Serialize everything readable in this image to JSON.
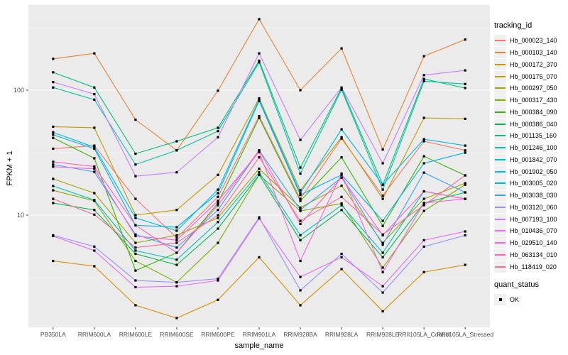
{
  "axes": {
    "y_title": "FPKM + 1",
    "x_title": "sample_name",
    "y_tick_labels": [
      "100",
      "10"
    ]
  },
  "legend": {
    "tracking_title": "tracking_id",
    "quant_title": "quant_status",
    "quant_value": "OK"
  },
  "chart_data": {
    "type": "line",
    "title": "",
    "xlabel": "sample_name",
    "ylabel": "FPKM + 1",
    "y_scale": "log10",
    "ylim": [
      1.26,
      481
    ],
    "y_tick_values": [
      100,
      10
    ],
    "grid": true,
    "panel_bg": "#EBEBEB",
    "grid_color": "#FFFFFF",
    "point_color": "#000000",
    "point_shape": "square",
    "legend_position": "right",
    "x_categories": [
      "PB350LA",
      "RRIM600LA",
      "RRIM600LE",
      "RRIM600SE",
      "RRIM600PE",
      "RRIM901LA",
      "RRIM928BA",
      "RRIM928LA",
      "RRIM928LE",
      "RRII105LA_Control",
      "RRII105LA_Stressed"
    ],
    "series": [
      {
        "name": "Hb_000023_140",
        "color": "#F8766D",
        "values": [
          34,
          36,
          13.5,
          6.6,
          14,
          62,
          13.5,
          41,
          14.3,
          39,
          33
        ]
      },
      {
        "name": "Hb_000103_140",
        "color": "#EA8331",
        "values": [
          178,
          197,
          58,
          33,
          99,
          370,
          100,
          216,
          33.5,
          187,
          254
        ]
      },
      {
        "name": "Hb_000172_370",
        "color": "#D89000",
        "values": [
          4.3,
          3.9,
          1.9,
          1.5,
          2.1,
          4.6,
          1.9,
          3.7,
          1.7,
          3.5,
          4.0
        ]
      },
      {
        "name": "Hb_000175_070",
        "color": "#C09B00",
        "values": [
          51,
          50,
          10,
          11,
          21,
          86,
          15.8,
          42,
          13.5,
          60,
          59
        ]
      },
      {
        "name": "Hb_000297_050",
        "color": "#A3A500",
        "values": [
          19.5,
          15,
          6.0,
          6.9,
          9.5,
          23.5,
          11.5,
          17.2,
          6.0,
          13.5,
          18
        ]
      },
      {
        "name": "Hb_000317_430",
        "color": "#7CAE00",
        "values": [
          15.8,
          13,
          4.3,
          2.9,
          6.0,
          21,
          10.8,
          12.4,
          3.8,
          10.8,
          17.5
        ]
      },
      {
        "name": "Hb_000384_090",
        "color": "#39B600",
        "values": [
          41.5,
          28.5,
          3.6,
          5.0,
          12.5,
          60,
          13,
          29,
          8.2,
          29.6,
          20.8
        ]
      },
      {
        "name": "Hb_000386_040",
        "color": "#00BB4E",
        "values": [
          12.5,
          11,
          4.9,
          4.0,
          7.8,
          21,
          6.3,
          11,
          4.6,
          12.5,
          15.2
        ]
      },
      {
        "name": "Hb_001135_160",
        "color": "#00BF7D",
        "values": [
          139,
          105,
          31,
          39,
          50,
          172,
          24,
          104,
          17.5,
          123,
          104
        ]
      },
      {
        "name": "Hb_001246_100",
        "color": "#00C1A3",
        "values": [
          105,
          84,
          25.4,
          33,
          47,
          167,
          21.5,
          101,
          16,
          118,
          112
        ]
      },
      {
        "name": "Hb_001842_070",
        "color": "#00BFC4",
        "values": [
          17.1,
          13.2,
          5.2,
          4.4,
          8.8,
          22,
          6.9,
          12,
          5.0,
          15.5,
          13.5
        ]
      },
      {
        "name": "Hb_001902_050",
        "color": "#00BAE0",
        "values": [
          46,
          35,
          9.5,
          7.5,
          16,
          84,
          15,
          48.6,
          17.5,
          40.5,
          36
        ]
      },
      {
        "name": "Hb_003005_020",
        "color": "#00B0F6",
        "values": [
          44,
          34,
          8.3,
          8.0,
          15,
          82,
          14.5,
          21,
          9.0,
          26,
          31.6
        ]
      },
      {
        "name": "Hb_003038_030",
        "color": "#35A2FF",
        "values": [
          25.4,
          22.2,
          7.0,
          5.5,
          11,
          33,
          11,
          20,
          5.8,
          21.9,
          15.2
        ]
      },
      {
        "name": "Hb_003120_060",
        "color": "#9590FF",
        "values": [
          6.9,
          5.6,
          3.0,
          2.9,
          3.1,
          9.6,
          2.5,
          4.9,
          2.4,
          5.6,
          6.9
        ]
      },
      {
        "name": "Hb_007193_100",
        "color": "#C77CFF",
        "values": [
          116,
          93,
          20.5,
          22,
          42,
          197,
          40,
          105,
          26,
          132,
          144
        ]
      },
      {
        "name": "Hb_010436_070",
        "color": "#E76BF3",
        "values": [
          6.8,
          5.2,
          2.65,
          2.7,
          3.0,
          9.4,
          3.2,
          4.6,
          2.7,
          6.3,
          7.4
        ]
      },
      {
        "name": "Hb_029510_140",
        "color": "#FA62DB",
        "values": [
          24.4,
          23.5,
          6.8,
          6.3,
          13,
          32,
          4.3,
          21.5,
          3.5,
          12.5,
          13.5
        ]
      },
      {
        "name": "Hb_063134_010",
        "color": "#FF62BC",
        "values": [
          26.7,
          24.5,
          8.3,
          5.0,
          12,
          33,
          8.5,
          20,
          6.9,
          15.5,
          13.5
        ]
      },
      {
        "name": "Hb_118419_020",
        "color": "#FF6A98",
        "values": [
          13.5,
          10.1,
          5.5,
          6.0,
          10,
          29,
          9.0,
          14,
          7.0,
          12,
          20.8
        ]
      }
    ]
  }
}
